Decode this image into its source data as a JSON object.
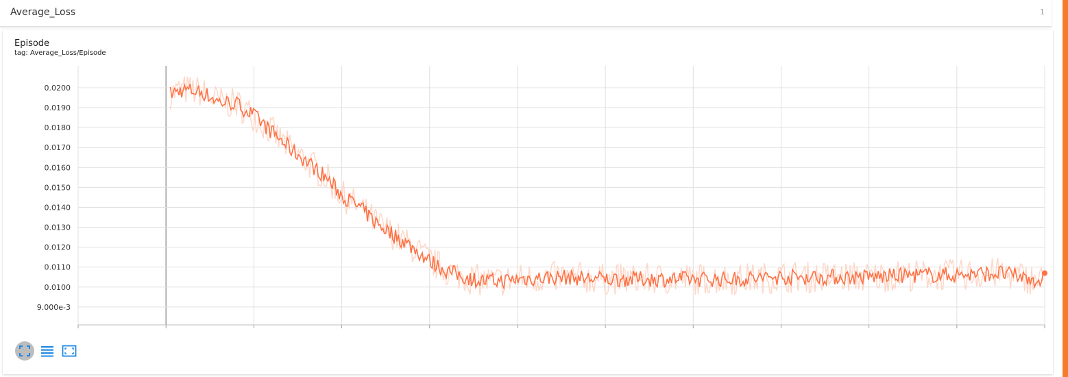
{
  "section": {
    "title": "Average_Loss",
    "count": "1"
  },
  "chart_card": {
    "title": "Episode",
    "tag": "tag: Average_Loss/Episode"
  },
  "colors": {
    "accent": "#f57c2a",
    "line": "#ff7043",
    "raw_line": "#fdd1c0",
    "grid": "#e0e0e0",
    "button_blue": "#1e88e5"
  },
  "icons": {
    "expand": "fullscreen-icon",
    "lines": "list-lines-icon",
    "fit": "fit-domain-icon"
  },
  "chart_data": {
    "type": "line",
    "title": "",
    "xlabel": "",
    "ylabel": "",
    "ylim": [
      0.0081,
      0.0211
    ],
    "yticks": [
      0.009,
      0.01,
      0.011,
      0.012,
      0.013,
      0.014,
      0.015,
      0.016,
      0.017,
      0.018,
      0.019,
      0.02
    ],
    "ytick_labels": [
      "9.000e-3",
      "0.0100",
      "0.0110",
      "0.0120",
      "0.0130",
      "0.0140",
      "0.0150",
      "0.0160",
      "0.0170",
      "0.0180",
      "0.0190",
      "0.0200"
    ],
    "xlim": [
      -1,
      10
    ],
    "xgrid_count": 12,
    "grid": true,
    "smoothing_visible": true,
    "series": [
      {
        "smoothed": [
          {
            "x": 0.05,
            "y": 0.0197
          },
          {
            "x": 0.2,
            "y": 0.0199
          },
          {
            "x": 0.4,
            "y": 0.0198
          },
          {
            "x": 0.6,
            "y": 0.0193
          },
          {
            "x": 0.8,
            "y": 0.0192
          },
          {
            "x": 1.0,
            "y": 0.0186
          },
          {
            "x": 1.2,
            "y": 0.0178
          },
          {
            "x": 1.4,
            "y": 0.017
          },
          {
            "x": 1.6,
            "y": 0.0163
          },
          {
            "x": 1.8,
            "y": 0.0156
          },
          {
            "x": 2.0,
            "y": 0.0146
          },
          {
            "x": 2.2,
            "y": 0.014
          },
          {
            "x": 2.4,
            "y": 0.0132
          },
          {
            "x": 2.6,
            "y": 0.0126
          },
          {
            "x": 2.8,
            "y": 0.012
          },
          {
            "x": 3.0,
            "y": 0.0113
          },
          {
            "x": 3.2,
            "y": 0.0108
          },
          {
            "x": 3.4,
            "y": 0.0105
          },
          {
            "x": 3.6,
            "y": 0.0103
          },
          {
            "x": 3.8,
            "y": 0.0103
          },
          {
            "x": 4.0,
            "y": 0.0104
          },
          {
            "x": 4.5,
            "y": 0.0105
          },
          {
            "x": 5.0,
            "y": 0.0104
          },
          {
            "x": 5.5,
            "y": 0.0104
          },
          {
            "x": 6.0,
            "y": 0.0104
          },
          {
            "x": 6.5,
            "y": 0.0104
          },
          {
            "x": 7.0,
            "y": 0.0105
          },
          {
            "x": 7.5,
            "y": 0.0105
          },
          {
            "x": 8.0,
            "y": 0.0105
          },
          {
            "x": 8.5,
            "y": 0.0106
          },
          {
            "x": 9.0,
            "y": 0.0106
          },
          {
            "x": 9.5,
            "y": 0.0107
          },
          {
            "x": 9.98,
            "y": 0.0103
          }
        ],
        "last_point": {
          "x": 10.0,
          "y": 0.0107
        }
      }
    ]
  }
}
